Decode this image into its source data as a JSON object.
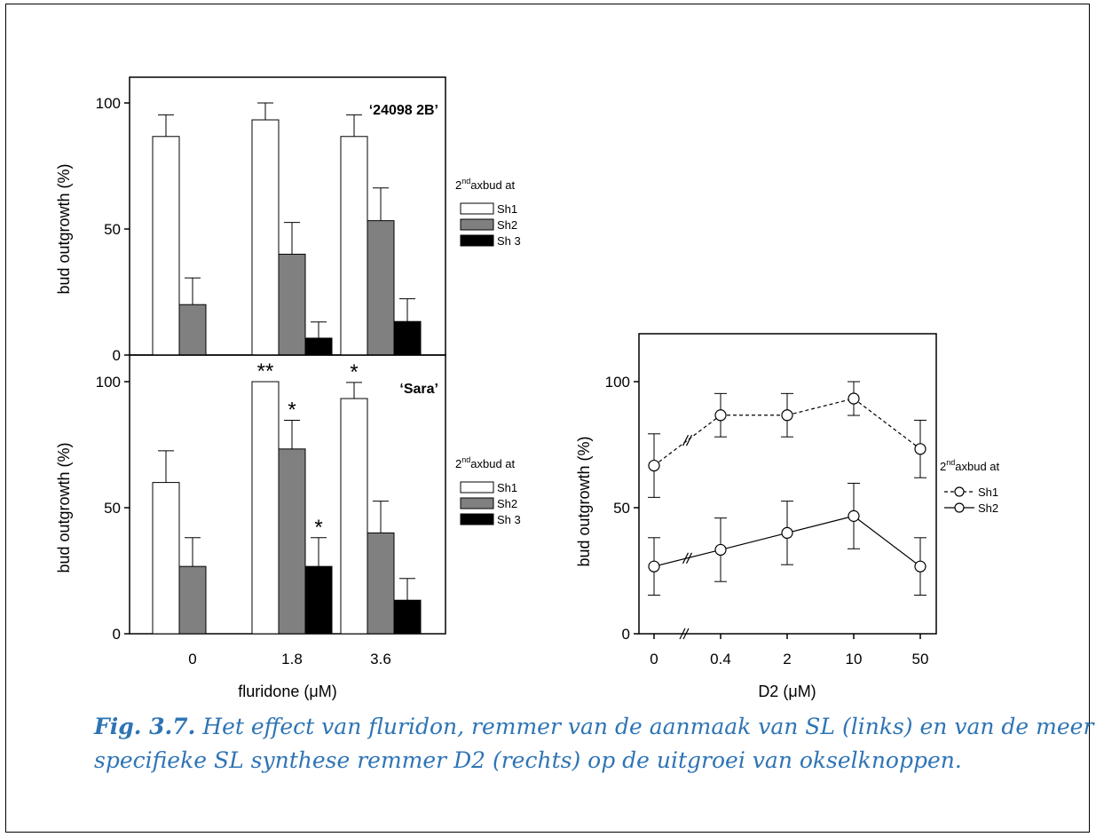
{
  "chart_data": [
    {
      "type": "bar",
      "panel": "left-top",
      "annotation_label": "‘24098 2B’",
      "ylabel": "bud outgrowth (%)",
      "xlabel": "",
      "ylim": [
        0,
        100
      ],
      "yticks": [
        "0",
        "50",
        "100"
      ],
      "categories": [
        "0",
        "1.8",
        "3.6"
      ],
      "series": [
        {
          "name": "Sh1",
          "values": [
            86.7,
            93.3,
            86.7
          ],
          "errors": [
            8.6,
            6.7,
            8.6
          ],
          "color": "#ffffff"
        },
        {
          "name": "Sh2",
          "values": [
            20.0,
            40.0,
            53.3
          ],
          "errors": [
            10.6,
            12.6,
            13.0
          ],
          "color": "#808080"
        },
        {
          "name": "Sh 3",
          "values": [
            0,
            6.7,
            13.3
          ],
          "errors": [
            0,
            6.4,
            9.0
          ],
          "color": "#000000"
        }
      ],
      "significance": [],
      "legend_title_prefix": "2",
      "legend_title_sup": "nd",
      "legend_title_suffix": "axbud at",
      "legend": "right"
    },
    {
      "type": "bar",
      "panel": "left-bottom",
      "annotation_label": "‘Sara’",
      "ylabel": "bud outgrowth (%)",
      "xlabel": "fluridone (μM)",
      "ylim": [
        0,
        100
      ],
      "yticks": [
        "0",
        "50",
        "100"
      ],
      "categories": [
        "0",
        "1.8",
        "3.6"
      ],
      "series": [
        {
          "name": "Sh1",
          "values": [
            60.0,
            100.0,
            93.3
          ],
          "errors": [
            12.6,
            0,
            6.4
          ],
          "color": "#ffffff"
        },
        {
          "name": "Sh2",
          "values": [
            26.7,
            73.3,
            40.0
          ],
          "errors": [
            11.4,
            11.4,
            12.6
          ],
          "color": "#808080"
        },
        {
          "name": "Sh 3",
          "values": [
            0,
            26.7,
            13.3
          ],
          "errors": [
            0,
            11.4,
            8.6
          ],
          "color": "#000000"
        }
      ],
      "significance": [
        {
          "category": 1,
          "series": 0,
          "label": "**"
        },
        {
          "category": 1,
          "series": 1,
          "label": "*"
        },
        {
          "category": 1,
          "series": 2,
          "label": "*"
        },
        {
          "category": 2,
          "series": 0,
          "label": "*"
        }
      ],
      "legend_title_prefix": "2",
      "legend_title_sup": "nd",
      "legend_title_suffix": "axbud at",
      "legend": "right"
    },
    {
      "type": "line",
      "panel": "right",
      "ylabel": "bud outgrowth (%)",
      "xlabel": "D2 (μM)",
      "ylim": [
        0,
        100
      ],
      "yticks": [
        "0",
        "50",
        "100"
      ],
      "x": [
        "0",
        "0.4",
        "2",
        "10",
        "50"
      ],
      "axis_break": "//",
      "series": [
        {
          "name": "Sh1",
          "style": "dashed",
          "values": [
            66.7,
            86.7,
            86.7,
            93.3,
            73.3
          ],
          "errors": [
            12.6,
            8.6,
            8.6,
            6.7,
            11.4
          ]
        },
        {
          "name": "Sh2",
          "style": "solid",
          "values": [
            26.7,
            33.3,
            40.0,
            46.7,
            26.7
          ],
          "errors": [
            11.4,
            12.6,
            12.6,
            13.0,
            11.4
          ]
        }
      ],
      "legend_title_prefix": "2",
      "legend_title_sup": "nd",
      "legend_title_suffix": "axbud at",
      "legend": "right"
    }
  ],
  "caption": {
    "label": "Fig. 3.7.",
    "line1": " Het effect van fluridon, remmer van de aanmaak van SL (links) en van de meer",
    "line2": "specifieke SL synthese remmer D2 (rechts) op de uitgroei van okselknoppen."
  }
}
